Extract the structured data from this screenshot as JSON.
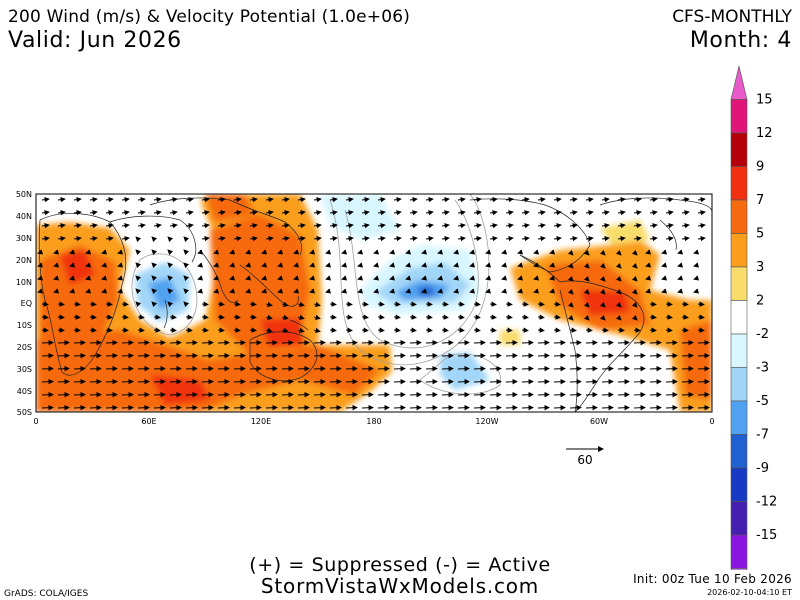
{
  "header": {
    "title": "200 Wind (m/s) & Velocity Potential (1.0e+06)",
    "valid": "Valid: Jun 2026",
    "model": "CFS-MONTHLY",
    "month": "Month: 4"
  },
  "map": {
    "lat_labels": [
      "50N",
      "40N",
      "30N",
      "20N",
      "10N",
      "EQ",
      "10S",
      "20S",
      "30S",
      "40S",
      "50S"
    ],
    "lon_labels": [
      "0",
      "60E",
      "120E",
      "180",
      "120W",
      "60W",
      "0"
    ],
    "reference_vector": {
      "value": 60,
      "label": "60"
    }
  },
  "legend": {
    "levels": [
      "15",
      "12",
      "9",
      "7",
      "5",
      "3",
      "2",
      "-2",
      "-3",
      "-5",
      "-7",
      "-9",
      "-12",
      "-15"
    ],
    "colors": [
      "#e75ac8",
      "#e0157a",
      "#b3000b",
      "#f03010",
      "#f66a10",
      "#fa9e1c",
      "#f8dc6c",
      "#ffffff",
      "#d8f6ff",
      "#a2d6f8",
      "#51a2f0",
      "#2160d0",
      "#163ac4",
      "#4520b0",
      "#8a14e0",
      "#c882e8"
    ]
  },
  "footer": {
    "legend_text": "(+) = Suppressed (-) = Active",
    "site": "StormVistaWxModels.com",
    "grads": "GrADS: COLA/IGES",
    "init": "Init: 00z Tue 10 Feb 2026",
    "stamp": "2026-02-10-04:10 ET"
  }
}
